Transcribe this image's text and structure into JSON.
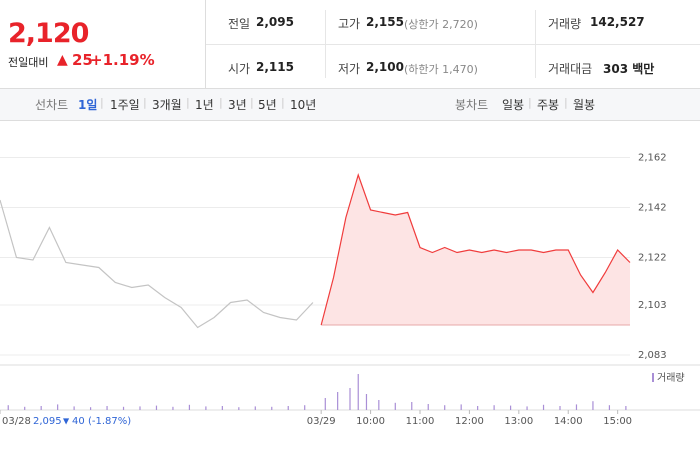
{
  "header": {
    "price": "2,120",
    "change_label": "전일대비",
    "change": "25",
    "change_pct": "+1.19%",
    "stats": [
      [
        {
          "label": "전일",
          "value": "2,095"
        },
        {
          "label": "고가",
          "value": "2,155",
          "note": "(상한가 2,720)"
        },
        {
          "label": "거래량",
          "value": "142,527"
        }
      ],
      [
        {
          "label": "시가",
          "value": "2,115"
        },
        {
          "label": "저가",
          "value": "2,100",
          "note": "(하한가 1,470)"
        },
        {
          "label": "거래대금",
          "value": "303 백만"
        }
      ]
    ]
  },
  "tabs": {
    "line_label": "선차트",
    "periods": [
      "1일",
      "1주일",
      "3개월",
      "1년",
      "3년",
      "5년",
      "10년"
    ],
    "candle_label": "봉차트",
    "candles": [
      "일봉",
      "주봉",
      "월봉"
    ]
  },
  "chart_data": {
    "type": "line",
    "xlim": [
      0,
      850
    ],
    "ylim": [
      2079,
      2173
    ],
    "xticks": [
      {
        "value": 0,
        "label": "03/28"
      },
      {
        "value": 390,
        "label": "03/29"
      },
      {
        "value": 450,
        "label": "10:00"
      },
      {
        "value": 510,
        "label": "11:00"
      },
      {
        "value": 570,
        "label": "12:00"
      },
      {
        "value": 630,
        "label": "13:00"
      },
      {
        "value": 690,
        "label": "14:00"
      },
      {
        "value": 750,
        "label": "15:00"
      }
    ],
    "yticks": [
      {
        "value": 2162,
        "label": "2,162"
      },
      {
        "value": 2142,
        "label": "2,142"
      },
      {
        "value": 2122,
        "label": "2,122"
      },
      {
        "value": 2103,
        "label": "2,103"
      },
      {
        "value": 2083,
        "label": "2,083"
      }
    ],
    "grid": true,
    "baseline": 2095,
    "series": [
      {
        "color": "#c4c4c4",
        "x": [
          0,
          20,
          40,
          60,
          80,
          100,
          120,
          140,
          160,
          180,
          200,
          220,
          240,
          260,
          280,
          300,
          320,
          340,
          360,
          380
        ],
        "values": [
          2145,
          2122,
          2121,
          2134,
          2120,
          2119,
          2118,
          2112,
          2110,
          2111,
          2106,
          2102,
          2094,
          2098,
          2104,
          2105,
          2100,
          2098,
          2097,
          2104
        ]
      },
      {
        "color": "#f03c3c",
        "fill": "#fde4e4",
        "x": [
          390,
          405,
          420,
          435,
          450,
          465,
          480,
          495,
          510,
          525,
          540,
          555,
          570,
          585,
          600,
          615,
          630,
          645,
          660,
          675,
          690,
          705,
          720,
          735,
          750,
          765
        ],
        "values": [
          2095,
          2114,
          2138,
          2155,
          2141,
          2140,
          2139,
          2140,
          2126,
          2124,
          2126,
          2124,
          2125,
          2124,
          2125,
          2124,
          2125,
          2125,
          2124,
          2125,
          2125,
          2115,
          2108,
          2116,
          2125,
          2120
        ]
      }
    ],
    "volume": {
      "name": "거래량",
      "color": "#a98fd6",
      "ylim": [
        0,
        100
      ],
      "x": [
        10,
        30,
        50,
        70,
        90,
        110,
        130,
        150,
        170,
        190,
        210,
        230,
        250,
        270,
        290,
        310,
        330,
        350,
        370,
        395,
        410,
        425,
        435,
        445,
        460,
        480,
        500,
        520,
        540,
        560,
        580,
        600,
        620,
        640,
        660,
        680,
        700,
        720,
        740,
        760
      ],
      "values": [
        12,
        8,
        10,
        14,
        9,
        7,
        10,
        8,
        9,
        11,
        8,
        13,
        9,
        10,
        7,
        9,
        8,
        10,
        12,
        30,
        45,
        55,
        90,
        40,
        25,
        18,
        20,
        15,
        12,
        14,
        10,
        12,
        11,
        9,
        13,
        10,
        14,
        22,
        12,
        10
      ]
    },
    "footer": {
      "date": "03/28",
      "close": "2,095",
      "change": "40",
      "change_pct": "(-1.87%)"
    }
  }
}
